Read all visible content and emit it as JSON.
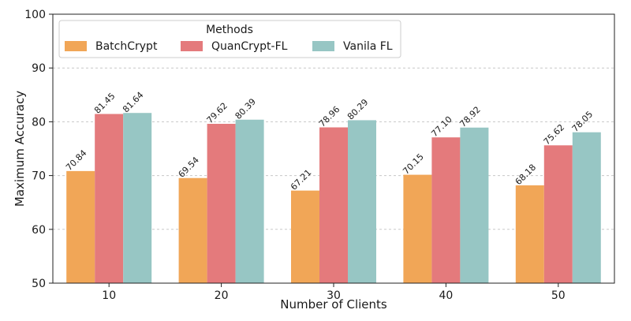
{
  "chart_data": {
    "type": "bar",
    "title": "",
    "xlabel": "Number of Clients",
    "ylabel": "Maximum Accuracy",
    "categories": [
      "10",
      "20",
      "30",
      "40",
      "50"
    ],
    "ylim": [
      50,
      100
    ],
    "yticks": [
      "50",
      "60",
      "70",
      "80",
      "90",
      "100"
    ],
    "grid": "horizontal, dashed",
    "legend": {
      "title": "Methods",
      "placement": "top-left"
    },
    "series": [
      {
        "name": "BatchCrypt",
        "color": "#f1a657",
        "values": [
          70.84,
          69.54,
          67.21,
          70.15,
          68.18
        ],
        "labels": [
          "70.84",
          "69.54",
          "67.21",
          "70.15",
          "68.18"
        ]
      },
      {
        "name": "QuanCrypt-FL",
        "color": "#e47a7c",
        "values": [
          81.45,
          79.62,
          78.96,
          77.1,
          75.62
        ],
        "labels": [
          "81.45",
          "79.62",
          "78.96",
          "77.10",
          "75.62"
        ]
      },
      {
        "name": "Vanila FL",
        "color": "#97c6c4",
        "values": [
          81.64,
          80.39,
          80.29,
          78.92,
          78.05
        ],
        "labels": [
          "81.64",
          "80.39",
          "80.29",
          "78.92",
          "78.05"
        ]
      }
    ]
  }
}
